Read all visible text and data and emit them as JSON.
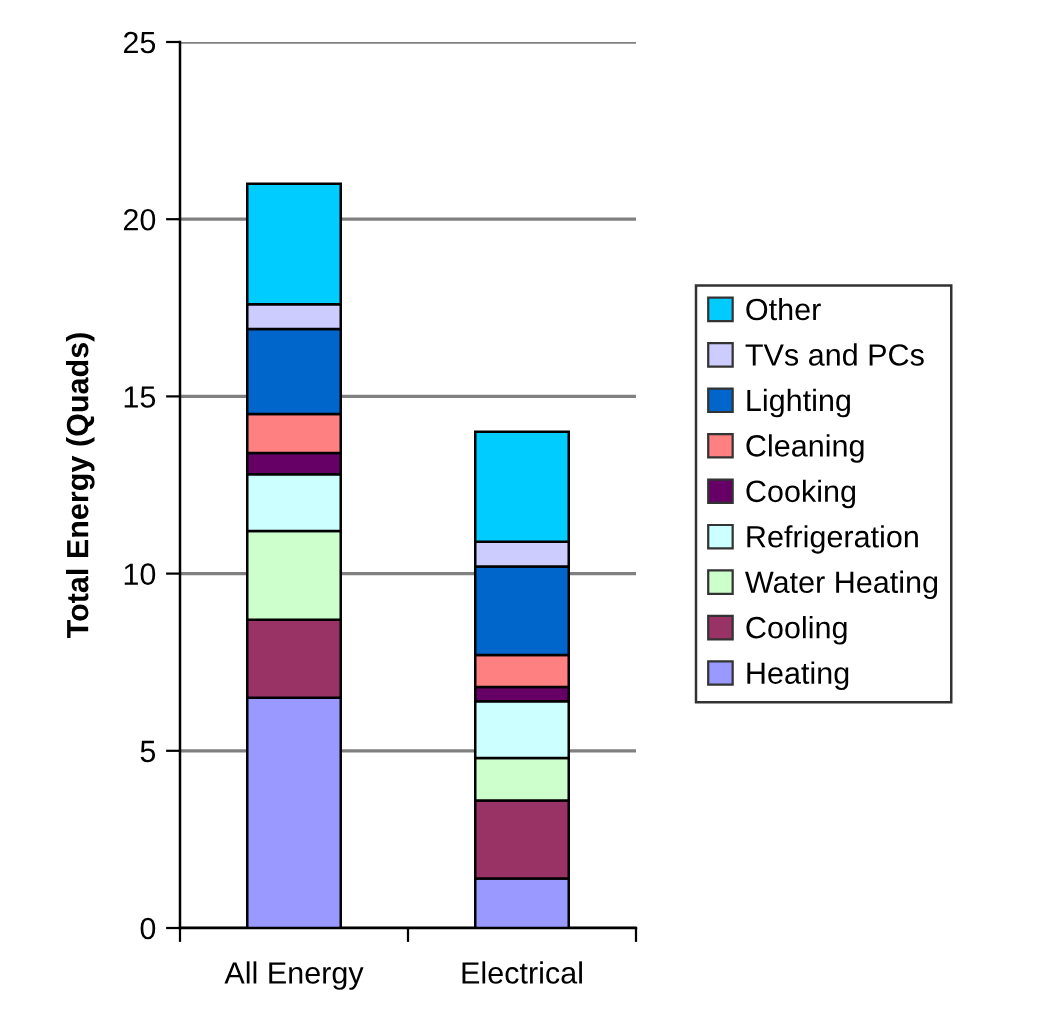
{
  "chart_data": {
    "type": "bar",
    "ylabel": "Total Energy (Quads)",
    "categories": [
      "All Energy",
      "Electrical"
    ],
    "stacked": true,
    "ylim": [
      0,
      25
    ],
    "yticks": [
      0,
      5,
      10,
      15,
      20,
      25
    ],
    "grid": "y",
    "legend": "right",
    "series": [
      {
        "name": "Heating",
        "color": "#9999ff",
        "values": [
          6.5,
          1.4
        ]
      },
      {
        "name": "Cooling",
        "color": "#993366",
        "values": [
          2.2,
          2.2
        ]
      },
      {
        "name": "Water Heating",
        "color": "#ccffcc",
        "values": [
          2.5,
          1.2
        ]
      },
      {
        "name": "Refrigeration",
        "color": "#ccffff",
        "values": [
          1.6,
          1.6
        ]
      },
      {
        "name": "Cooking",
        "color": "#660066",
        "values": [
          0.6,
          0.4
        ]
      },
      {
        "name": "Cleaning",
        "color": "#ff8080",
        "values": [
          1.1,
          0.9
        ]
      },
      {
        "name": "Lighting",
        "color": "#0066cc",
        "values": [
          2.4,
          2.5
        ]
      },
      {
        "name": "TVs and PCs",
        "color": "#ccccff",
        "values": [
          0.7,
          0.7
        ]
      },
      {
        "name": "Other",
        "color": "#00ccff",
        "values": [
          3.4,
          3.1
        ]
      }
    ]
  }
}
